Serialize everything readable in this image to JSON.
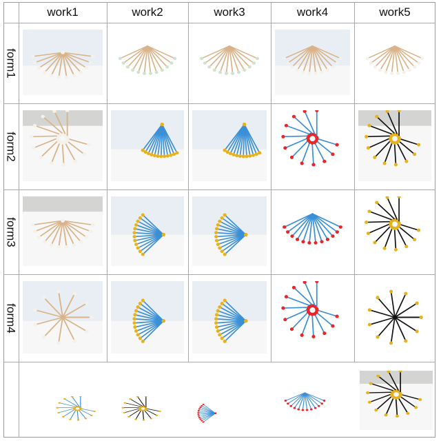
{
  "columns": [
    "work1",
    "work2",
    "work3",
    "work4",
    "work5"
  ],
  "rows": [
    "form1",
    "form2",
    "form3",
    "form4",
    ""
  ],
  "palette": {
    "wood": "#d9b48a",
    "cotton": "#f4f1ea",
    "green_tip": "#cfe3cf",
    "blue": "#3a8fd6",
    "yellow": "#e8b21c",
    "red": "#e8262a",
    "black": "#111111",
    "backdrop_light": "#e9eef4",
    "backdrop_gray": "#d4d4d2"
  },
  "cells": [
    {
      "row": 0,
      "col": 0,
      "stick": "wood",
      "tip": "cotton",
      "bg": "backdrop_light",
      "kind": "umbrella"
    },
    {
      "row": 0,
      "col": 1,
      "stick": "wood",
      "tip": "green_tip",
      "bg": "none",
      "kind": "fan"
    },
    {
      "row": 0,
      "col": 2,
      "stick": "wood",
      "tip": "green_tip",
      "bg": "none",
      "kind": "fan"
    },
    {
      "row": 0,
      "col": 3,
      "stick": "wood",
      "tip": "cotton",
      "bg": "backdrop_light",
      "kind": "fan"
    },
    {
      "row": 0,
      "col": 4,
      "stick": "wood",
      "tip": "cotton",
      "bg": "none",
      "kind": "fan"
    },
    {
      "row": 1,
      "col": 0,
      "stick": "wood",
      "tip": "cotton",
      "bg": "backdrop_gray",
      "kind": "spiral"
    },
    {
      "row": 1,
      "col": 1,
      "stick": "blue",
      "tip": "yellow",
      "bg": "backdrop_light",
      "kind": "fanup"
    },
    {
      "row": 1,
      "col": 2,
      "stick": "blue",
      "tip": "yellow",
      "bg": "backdrop_light",
      "kind": "fanup"
    },
    {
      "row": 1,
      "col": 3,
      "stick": "blue",
      "tip": "red",
      "bg": "none",
      "kind": "spiral"
    },
    {
      "row": 1,
      "col": 4,
      "stick": "black",
      "tip": "yellow",
      "bg": "backdrop_gray",
      "kind": "spiral"
    },
    {
      "row": 2,
      "col": 0,
      "stick": "wood",
      "tip": "cotton",
      "bg": "backdrop_gray",
      "kind": "umbrella"
    },
    {
      "row": 2,
      "col": 1,
      "stick": "blue",
      "tip": "yellow",
      "bg": "backdrop_light",
      "kind": "side"
    },
    {
      "row": 2,
      "col": 2,
      "stick": "blue",
      "tip": "yellow",
      "bg": "backdrop_light",
      "kind": "side"
    },
    {
      "row": 2,
      "col": 3,
      "stick": "blue",
      "tip": "red",
      "bg": "none",
      "kind": "fan"
    },
    {
      "row": 2,
      "col": 4,
      "stick": "black",
      "tip": "yellow",
      "bg": "none",
      "kind": "spiral"
    },
    {
      "row": 3,
      "col": 0,
      "stick": "wood",
      "tip": "cotton",
      "bg": "backdrop_light",
      "kind": "ring"
    },
    {
      "row": 3,
      "col": 1,
      "stick": "blue",
      "tip": "yellow",
      "bg": "backdrop_light",
      "kind": "side"
    },
    {
      "row": 3,
      "col": 2,
      "stick": "blue",
      "tip": "yellow",
      "bg": "backdrop_light",
      "kind": "side"
    },
    {
      "row": 3,
      "col": 3,
      "stick": "blue",
      "tip": "red",
      "bg": "none",
      "kind": "spiral"
    },
    {
      "row": 3,
      "col": 4,
      "stick": "black",
      "tip": "yellow",
      "bg": "none",
      "kind": "ring"
    }
  ],
  "bottom_row": [
    {
      "stick": "blue",
      "tip": "yellow",
      "bg": "none",
      "kind": "spiral"
    },
    {
      "stick": "black",
      "tip": "yellow",
      "bg": "none",
      "kind": "spiral"
    },
    {
      "stick": "blue",
      "tip": "red",
      "bg": "none",
      "kind": "side"
    },
    {
      "stick": "blue",
      "tip": "red",
      "bg": "none",
      "kind": "fan"
    },
    {
      "stick": "black",
      "tip": "yellow",
      "bg": "backdrop_gray",
      "kind": "spiral"
    }
  ]
}
